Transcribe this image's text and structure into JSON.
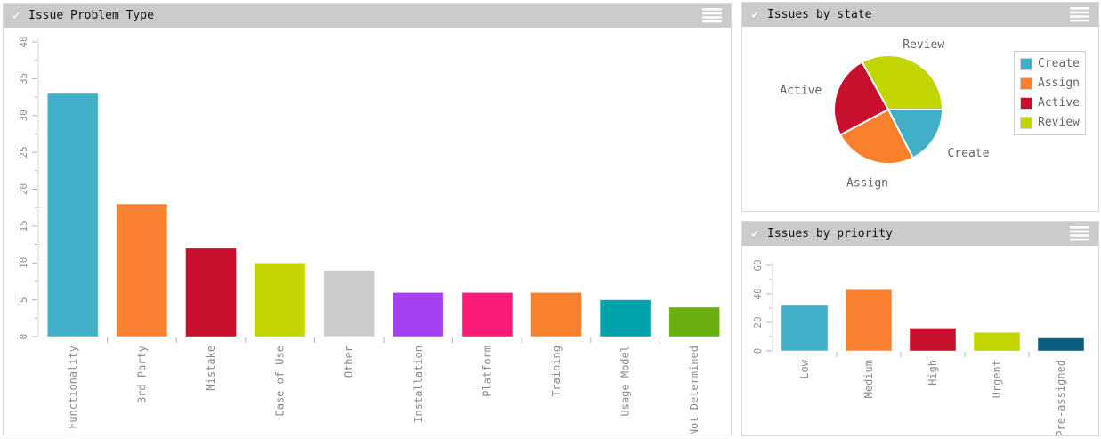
{
  "icons": {
    "panel_status": "check",
    "panel_menu": "hamburger-menu"
  },
  "theme": {
    "header_bg": "#cbcbcb",
    "panel_border": "#d8d8d8",
    "axis_color": "#d4d4d4",
    "tick_color": "#b0b0b0",
    "label_color": "#8c8c8c",
    "pie_label_color": "#666666",
    "title_color": "#141414",
    "legend_border": "#cccccc",
    "background": "#ffffff"
  },
  "chart_data": [
    {
      "type": "bar",
      "title": "Issue Problem Type",
      "categories": [
        "Functionality",
        "3rd Party",
        "Mistake",
        "Ease of Use",
        "Other",
        "Installation",
        "Platform",
        "Training",
        "Usage Model",
        "Not Determined"
      ],
      "values": [
        33,
        18,
        12,
        10,
        9,
        6,
        6,
        6,
        5,
        4
      ],
      "colors": [
        "#42afc9",
        "#fb8132",
        "#c8102e",
        "#c3d500",
        "#cccccc",
        "#a440f2",
        "#fc1c77",
        "#f9802d",
        "#00a2ab",
        "#69af10"
      ],
      "xlabel": "",
      "ylabel": "",
      "ylim": [
        0,
        40
      ],
      "ytick_step": 5,
      "ytick_minor_step": 2.5,
      "grid": false,
      "label_rotation_deg": -90
    },
    {
      "type": "pie",
      "title": "Issues by state",
      "categories": [
        "Create",
        "Assign",
        "Active",
        "Review"
      ],
      "values_percent": [
        17.5,
        24.75,
        24.75,
        33
      ],
      "colors": [
        "#42afc9",
        "#f9802d",
        "#c8102e",
        "#c3d500"
      ],
      "start_angle_deg": 0,
      "direction": "clockwise",
      "legend_position": "right"
    },
    {
      "type": "bar",
      "title": "Issues by priority",
      "categories": [
        "Low",
        "Medium",
        "High",
        "Urgent",
        "Pre-assigned"
      ],
      "values": [
        32,
        43,
        16,
        13,
        9
      ],
      "colors": [
        "#42afc9",
        "#fb8132",
        "#c8102e",
        "#c3d500",
        "#0b5e80"
      ],
      "xlabel": "",
      "ylabel": "",
      "ylim": [
        0,
        60
      ],
      "ytick_step": 20,
      "ytick_minor_step": 10,
      "grid": false,
      "label_rotation_deg": -90
    }
  ]
}
